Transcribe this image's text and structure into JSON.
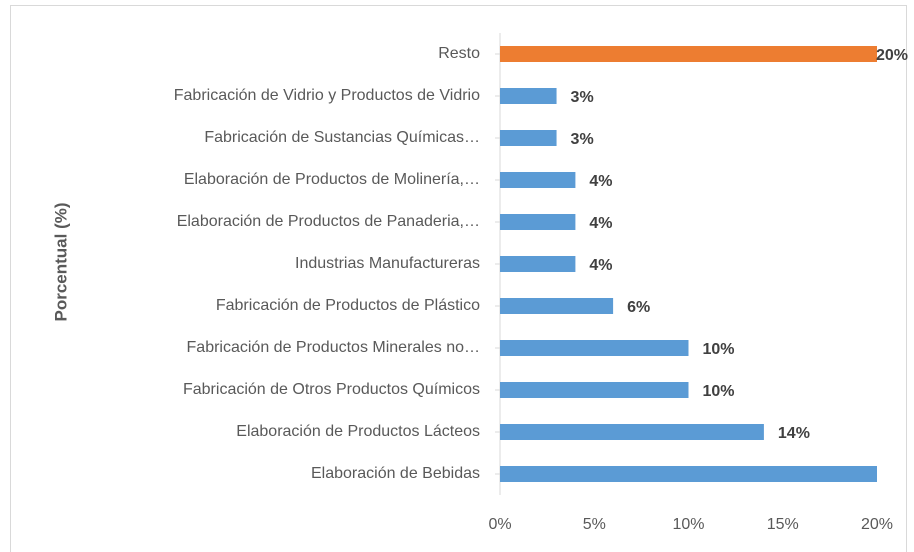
{
  "chart_data": {
    "type": "bar",
    "orientation": "horizontal",
    "y_label": "Porcentual (%)",
    "categories": [
      "Resto",
      "Fabricación de Vidrio y Productos de Vidrio",
      "Fabricación de Sustancias Químicas…",
      "Elaboración de Productos de Molinería,…",
      "Elaboración de Productos de Panaderia,…",
      "Industrias Manufactureras",
      "Fabricación de Productos de Plástico",
      "Fabricación de Productos Minerales no…",
      "Fabricación de Otros Productos Químicos",
      "Elaboración de Productos Lácteos",
      "Elaboración de Bebidas"
    ],
    "values": [
      20,
      3,
      3,
      4,
      4,
      4,
      6,
      10,
      10,
      14,
      20
    ],
    "value_labels": [
      "20%",
      "3%",
      "3%",
      "4%",
      "4%",
      "4%",
      "6%",
      "10%",
      "10%",
      "14%",
      null
    ],
    "colors": [
      "#ed7d31",
      "#5b9bd5",
      "#5b9bd5",
      "#5b9bd5",
      "#5b9bd5",
      "#5b9bd5",
      "#5b9bd5",
      "#5b9bd5",
      "#5b9bd5",
      "#5b9bd5",
      "#5b9bd5"
    ],
    "xlim": [
      0,
      20
    ],
    "xticks": [
      {
        "value": 0,
        "label": "0%"
      },
      {
        "value": 5,
        "label": "5%"
      },
      {
        "value": 10,
        "label": "10%"
      },
      {
        "value": 15,
        "label": "15%"
      },
      {
        "value": 20,
        "label": "20%"
      }
    ]
  }
}
